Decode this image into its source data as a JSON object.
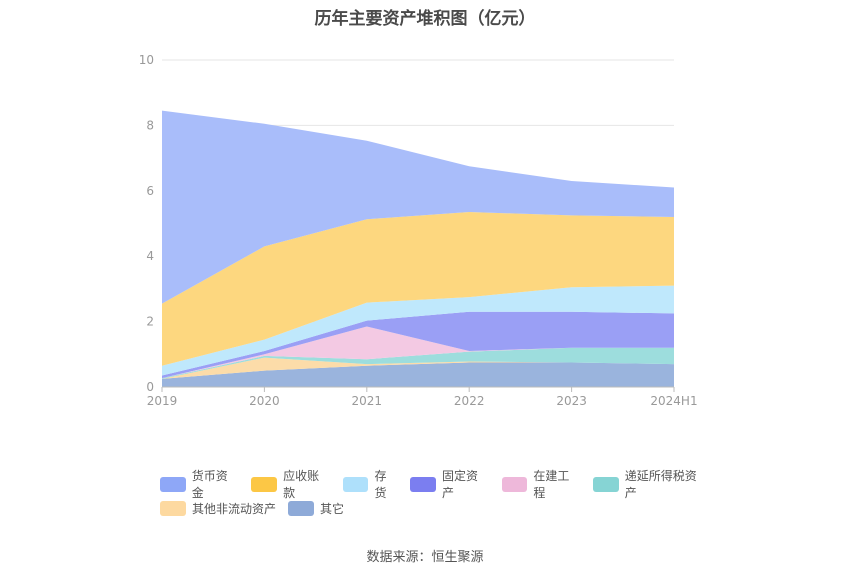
{
  "title": "历年主要资产堆积图（亿元）",
  "source": "数据来源：恒生聚源",
  "chart_data": {
    "type": "area",
    "stacked": true,
    "categories": [
      "2019",
      "2020",
      "2021",
      "2022",
      "2023",
      "2024H1"
    ],
    "ylim": [
      0,
      10
    ],
    "yticks": [
      0,
      2,
      4,
      6,
      8,
      10
    ],
    "grid": true,
    "legend_position": "bottom",
    "series": [
      {
        "name": "其它",
        "color": "#9ab4dd",
        "values": [
          0.25,
          0.5,
          0.65,
          0.75,
          0.75,
          0.7
        ]
      },
      {
        "name": "其他非流动资产",
        "color": "#fcdca9",
        "values": [
          0.0,
          0.4,
          0.05,
          0.03,
          0.0,
          0.0
        ]
      },
      {
        "name": "递延所得税资产",
        "color": "#9ddddd",
        "values": [
          0.02,
          0.05,
          0.15,
          0.3,
          0.45,
          0.5
        ]
      },
      {
        "name": "在建工程",
        "color": "#f3c9e3",
        "values": [
          0.0,
          0.05,
          1.0,
          0.02,
          0.0,
          0.0
        ]
      },
      {
        "name": "固定资产",
        "color": "#9a9ff5",
        "values": [
          0.08,
          0.1,
          0.18,
          1.2,
          1.1,
          1.05
        ]
      },
      {
        "name": "存货",
        "color": "#bfe8fc",
        "values": [
          0.3,
          0.35,
          0.55,
          0.45,
          0.75,
          0.85
        ]
      },
      {
        "name": "应收账款",
        "color": "#fdd77f",
        "values": [
          1.9,
          2.85,
          2.55,
          2.6,
          2.2,
          2.1
        ]
      },
      {
        "name": "货币资金",
        "color": "#a9bdfa",
        "values": [
          5.9,
          3.75,
          2.4,
          1.4,
          1.05,
          0.9
        ]
      }
    ],
    "legend_items": [
      {
        "name": "货币资金",
        "color": "#8ea7f7"
      },
      {
        "name": "应收账款",
        "color": "#fcc745"
      },
      {
        "name": "存货",
        "color": "#aee0fb"
      },
      {
        "name": "固定资产",
        "color": "#7b7ef0"
      },
      {
        "name": "在建工程",
        "color": "#eeb8da"
      },
      {
        "name": "递延所得税资产",
        "color": "#86d4d4"
      },
      {
        "name": "其他非流动资产",
        "color": "#fdd9a0"
      },
      {
        "name": "其它",
        "color": "#8eaad8"
      }
    ]
  }
}
